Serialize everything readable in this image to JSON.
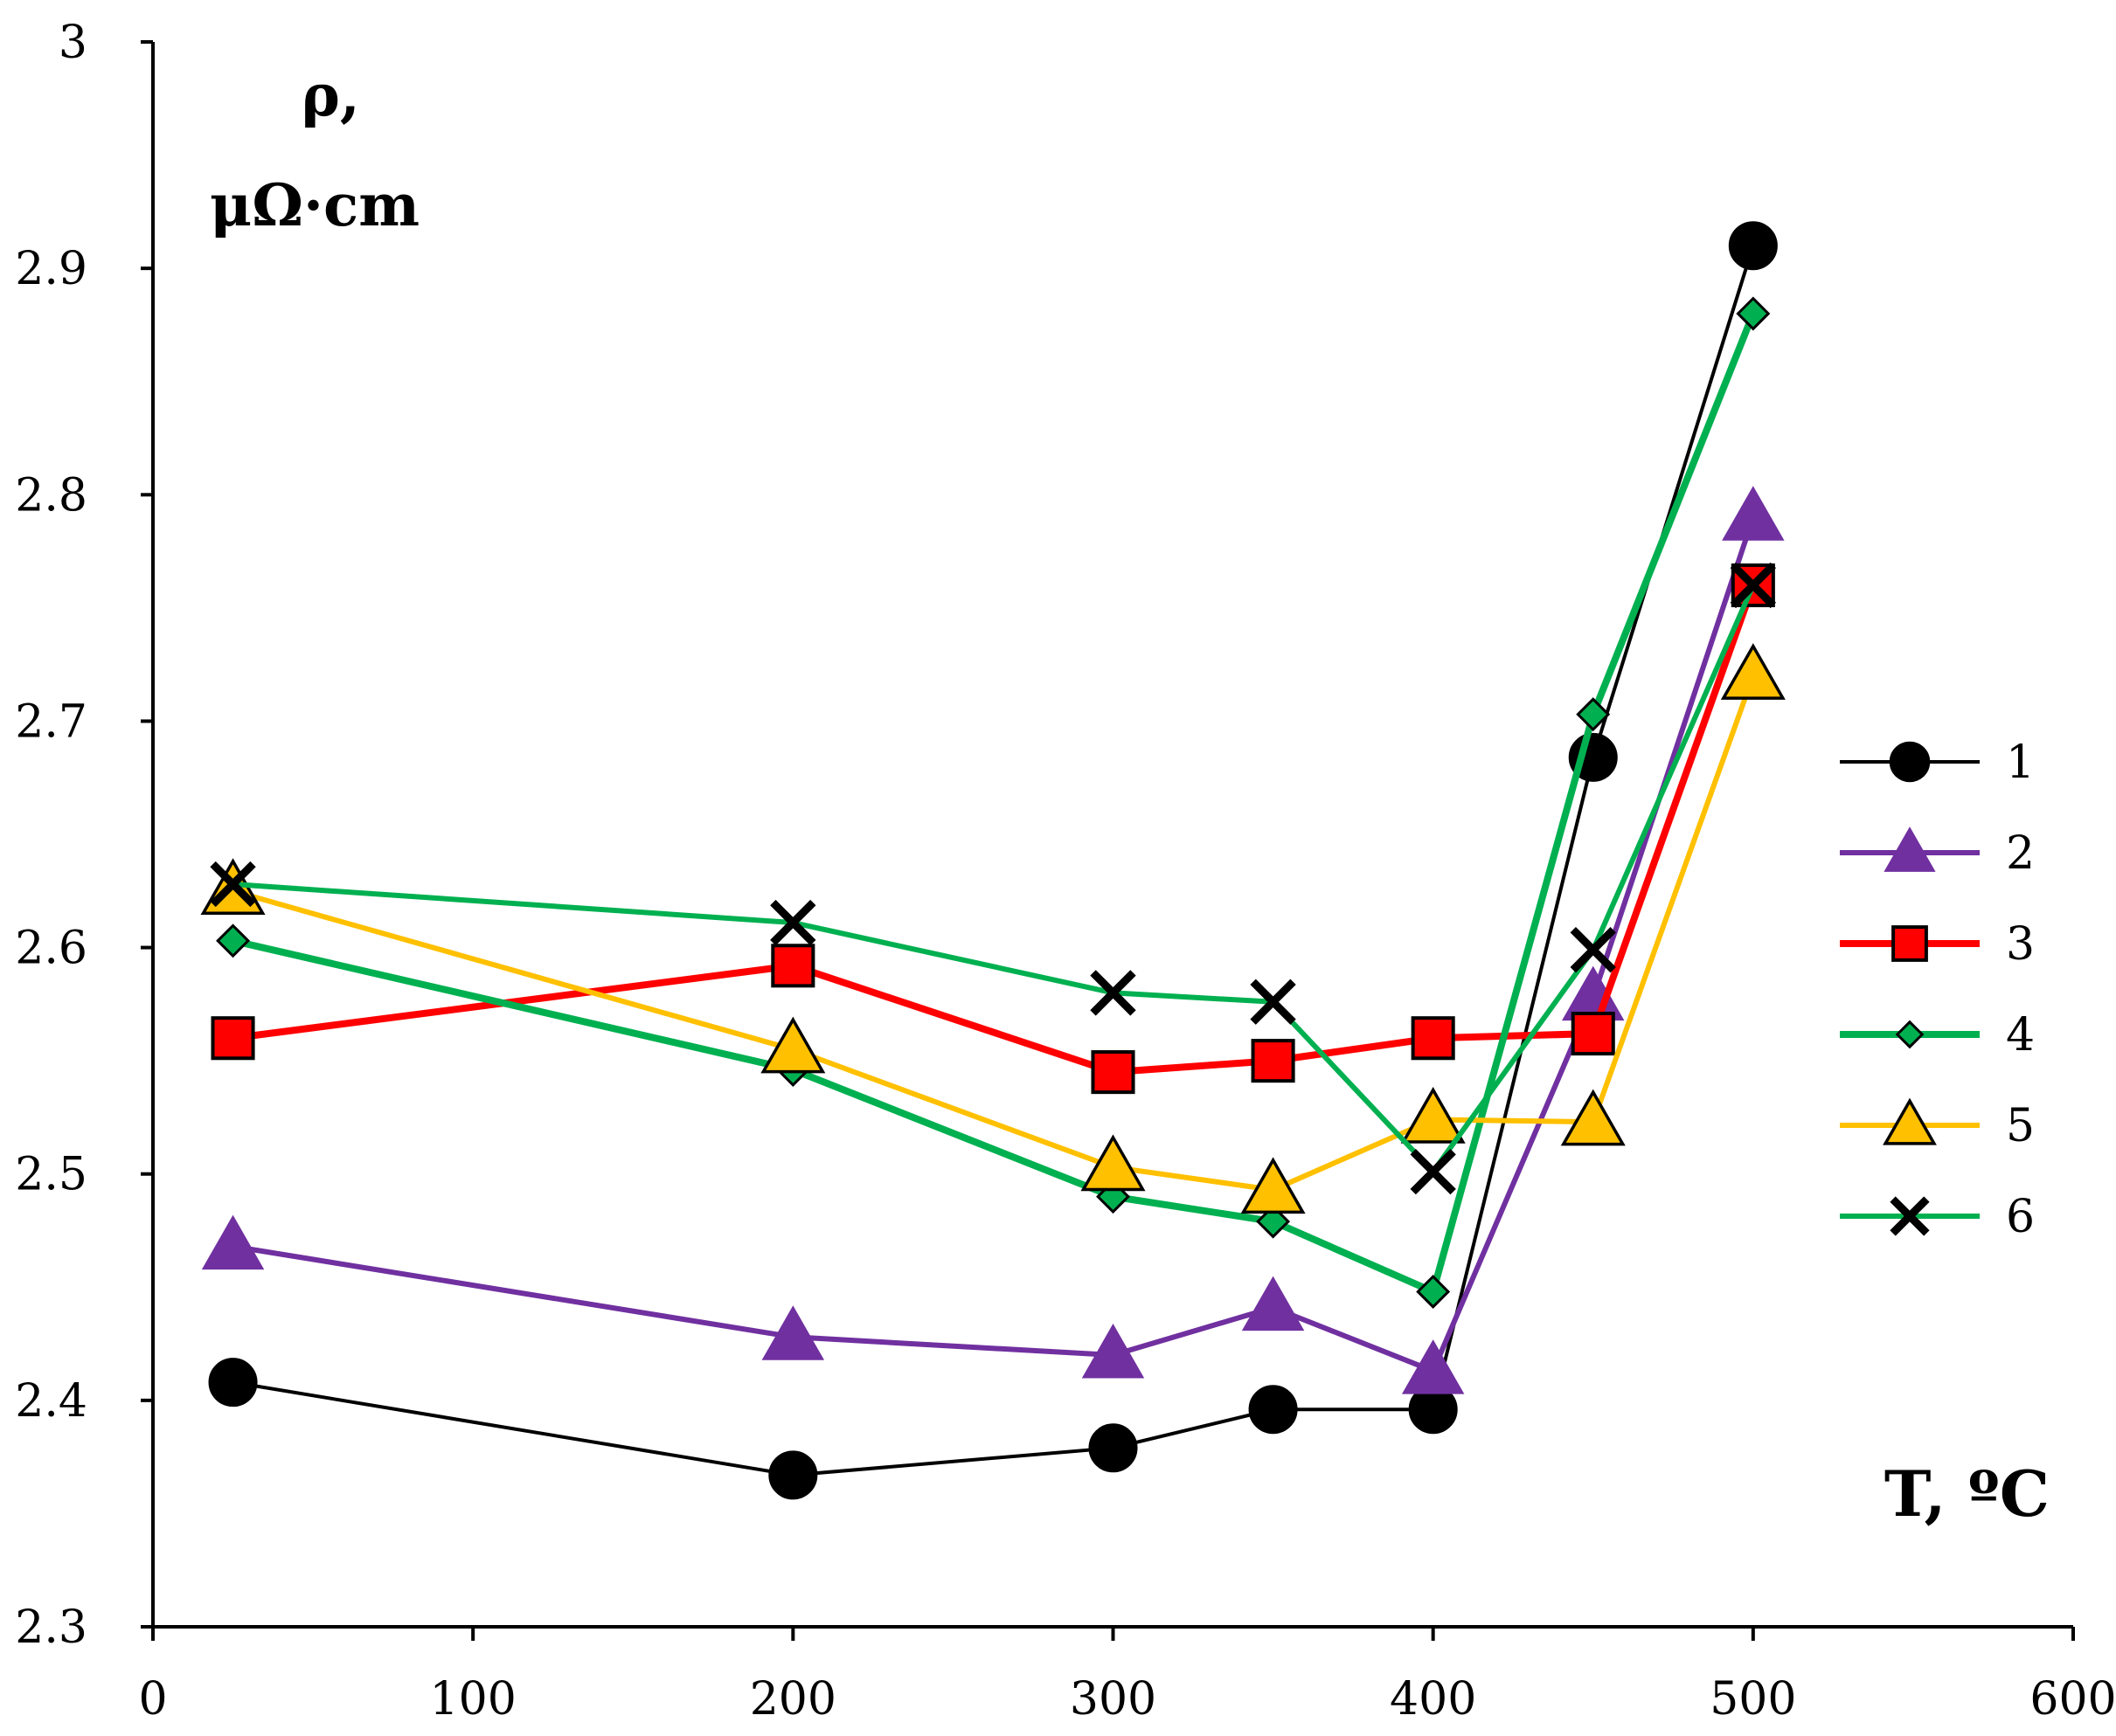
{
  "chart_data": {
    "type": "line",
    "title": "",
    "ylabel_line1": "ρ,",
    "ylabel_line2": "μΩ·cm",
    "xlabel": "T, ºC",
    "xlim": [
      0,
      600
    ],
    "ylim": [
      2.3,
      3.0
    ],
    "x_ticks": [
      "0",
      "100",
      "200",
      "300",
      "400",
      "500",
      "600"
    ],
    "y_ticks": [
      "2.3",
      "2.4",
      "2.5",
      "2.6",
      "2.7",
      "2.8",
      "2.9",
      "3"
    ],
    "grid": false,
    "legend_position": "right",
    "x": [
      25,
      200,
      300,
      350,
      400,
      450,
      500
    ],
    "series": [
      {
        "name": "1",
        "color": "#000000",
        "marker": "circle",
        "marker_fill": "#000000",
        "values": [
          2.408,
          2.367,
          2.379,
          2.396,
          2.396,
          2.684,
          2.91
        ]
      },
      {
        "name": "2",
        "color": "#7030A0",
        "marker": "triangle",
        "marker_fill": "#7030A0",
        "values": [
          2.468,
          2.428,
          2.42,
          2.441,
          2.413,
          2.578,
          2.79
        ]
      },
      {
        "name": "3",
        "color": "#FF0000",
        "marker": "square",
        "marker_fill": "#FF0000",
        "values": [
          2.56,
          2.592,
          2.545,
          2.55,
          2.56,
          2.562,
          2.76
        ]
      },
      {
        "name": "4",
        "color": "#00B050",
        "marker": "diamond",
        "marker_fill": "#00B050",
        "values": [
          2.603,
          2.546,
          2.49,
          2.479,
          2.448,
          2.703,
          2.88
        ]
      },
      {
        "name": "5",
        "color": "#FFC000",
        "marker": "triangle-open",
        "marker_fill": "#FFC000",
        "values": [
          2.625,
          2.555,
          2.503,
          2.493,
          2.524,
          2.523,
          2.72
        ]
      },
      {
        "name": "6",
        "color": "#00B050",
        "marker": "x",
        "marker_fill": "#000000",
        "values": [
          2.628,
          2.611,
          2.58,
          2.576,
          2.501,
          2.599,
          2.76
        ]
      }
    ]
  }
}
